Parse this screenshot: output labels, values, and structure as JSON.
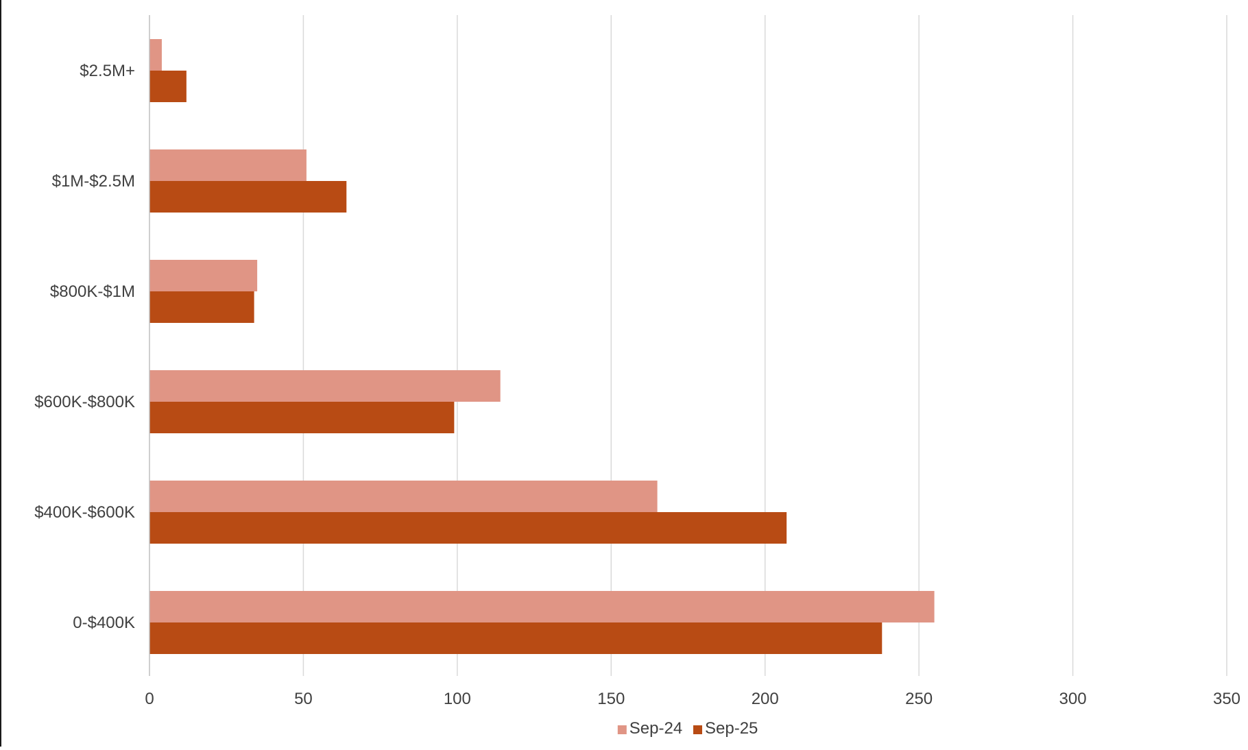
{
  "chart_data": {
    "type": "bar",
    "orientation": "horizontal",
    "title": "",
    "xlabel": "",
    "ylabel": "",
    "categories": [
      "$2.5M+",
      "$1M-$2.5M",
      "$800K-$1M",
      "$600K-$800K",
      "$400K-$600K",
      "0-$400K"
    ],
    "series": [
      {
        "name": "Sep-24",
        "color": "#e09585",
        "values": [
          4,
          51,
          35,
          114,
          165,
          255
        ]
      },
      {
        "name": "Sep-25",
        "color": "#b84b14",
        "values": [
          12,
          64,
          34,
          99,
          207,
          238
        ]
      }
    ],
    "xlim": [
      0,
      350
    ],
    "xticks": [
      "0",
      "50",
      "100",
      "150",
      "200",
      "250",
      "300",
      "350"
    ],
    "grid": true,
    "legend_position": "bottom"
  },
  "colors": {
    "grid": "#d9d9d9",
    "axis": "#bfbfbf",
    "text": "#404040"
  }
}
